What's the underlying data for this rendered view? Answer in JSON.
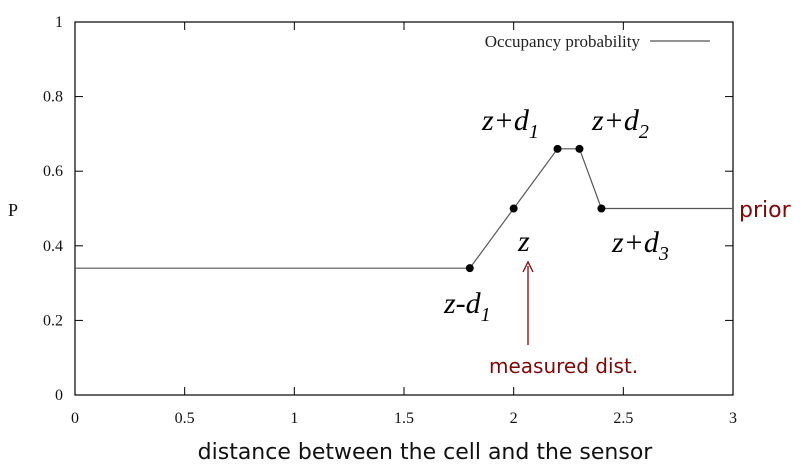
{
  "chart_data": {
    "type": "line",
    "xlabel": "distance between the cell and the sensor",
    "ylabel": "P",
    "xlim": [
      0,
      3
    ],
    "ylim": [
      0,
      1
    ],
    "x_ticks": [
      0,
      0.5,
      1,
      1.5,
      2,
      2.5,
      3
    ],
    "x_tick_labels": [
      "0",
      "0.5",
      "1",
      "1.5",
      "2",
      "2.5",
      "3"
    ],
    "y_ticks": [
      0,
      0.2,
      0.4,
      0.6,
      0.8,
      1
    ],
    "y_tick_labels": [
      "0",
      "0.2",
      "0.4",
      "0.6",
      "0.8",
      "1"
    ],
    "legend": {
      "label": "Occupancy probability",
      "placement": "top-right"
    },
    "series": [
      {
        "name": "Occupancy probability",
        "color": "#555555",
        "x": [
          0,
          1.8,
          2.0,
          2.2,
          2.3,
          2.4,
          3.0
        ],
        "y": [
          0.34,
          0.34,
          0.5,
          0.66,
          0.66,
          0.5,
          0.5
        ]
      }
    ],
    "marked_points": [
      {
        "x": 1.8,
        "y": 0.34
      },
      {
        "x": 2.0,
        "y": 0.5
      },
      {
        "x": 2.2,
        "y": 0.66
      },
      {
        "x": 2.3,
        "y": 0.66
      },
      {
        "x": 2.4,
        "y": 0.5
      }
    ],
    "annotations": {
      "z_minus_d1": {
        "base": "z-d",
        "sub": "1"
      },
      "z_plus_d1": {
        "base": "z+d",
        "sub": "1"
      },
      "z_plus_d2": {
        "base": "z+d",
        "sub": "2"
      },
      "z_plus_d3": {
        "base": "z+d",
        "sub": "3"
      },
      "z": "z",
      "measured": "measured dist.",
      "prior": "prior"
    },
    "annotation_color": "#7a0a0a",
    "grid": false
  }
}
